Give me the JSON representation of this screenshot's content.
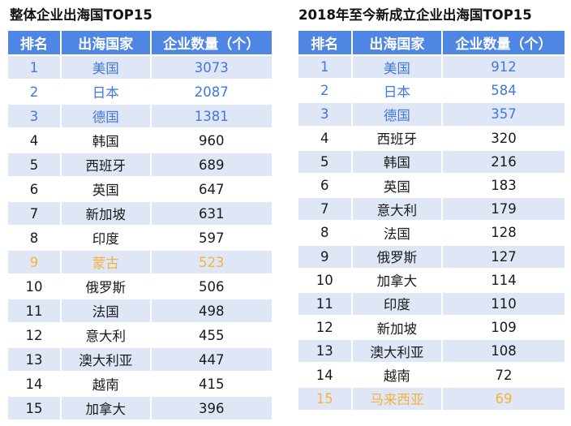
{
  "colors": {
    "header_bg": "#4f86e4",
    "stripe_bg": "#dfe7f7",
    "highlight_blue": "#3f78e0",
    "highlight_orange": "#f5b23c"
  },
  "left": {
    "title": "整体企业出海国TOP15",
    "headers": [
      "排名",
      "出海国家",
      "企业数量（个）"
    ],
    "rows": [
      {
        "rank": "1",
        "country": "美国",
        "count": "3073",
        "highlight": "blue"
      },
      {
        "rank": "2",
        "country": "日本",
        "count": "2087",
        "highlight": "blue"
      },
      {
        "rank": "3",
        "country": "德国",
        "count": "1381",
        "highlight": "blue"
      },
      {
        "rank": "4",
        "country": "韩国",
        "count": "960",
        "highlight": ""
      },
      {
        "rank": "5",
        "country": "西班牙",
        "count": "689",
        "highlight": ""
      },
      {
        "rank": "6",
        "country": "英国",
        "count": "647",
        "highlight": ""
      },
      {
        "rank": "7",
        "country": "新加坡",
        "count": "631",
        "highlight": ""
      },
      {
        "rank": "8",
        "country": "印度",
        "count": "597",
        "highlight": ""
      },
      {
        "rank": "9",
        "country": "蒙古",
        "count": "523",
        "highlight": "orange"
      },
      {
        "rank": "10",
        "country": "俄罗斯",
        "count": "506",
        "highlight": ""
      },
      {
        "rank": "11",
        "country": "法国",
        "count": "498",
        "highlight": ""
      },
      {
        "rank": "12",
        "country": "意大利",
        "count": "455",
        "highlight": ""
      },
      {
        "rank": "13",
        "country": "澳大利亚",
        "count": "447",
        "highlight": ""
      },
      {
        "rank": "14",
        "country": "越南",
        "count": "415",
        "highlight": ""
      },
      {
        "rank": "15",
        "country": "加拿大",
        "count": "396",
        "highlight": ""
      }
    ]
  },
  "right": {
    "title": "2018年至今新成立企业出海国TOP15",
    "headers": [
      "排名",
      "出海国家",
      "企业数量（个）"
    ],
    "rows": [
      {
        "rank": "1",
        "country": "美国",
        "count": "912",
        "highlight": "blue"
      },
      {
        "rank": "2",
        "country": "日本",
        "count": "584",
        "highlight": "blue"
      },
      {
        "rank": "3",
        "country": "德国",
        "count": "357",
        "highlight": "blue"
      },
      {
        "rank": "4",
        "country": "西班牙",
        "count": "320",
        "highlight": ""
      },
      {
        "rank": "5",
        "country": "韩国",
        "count": "216",
        "highlight": ""
      },
      {
        "rank": "6",
        "country": "英国",
        "count": "183",
        "highlight": ""
      },
      {
        "rank": "7",
        "country": "意大利",
        "count": "179",
        "highlight": ""
      },
      {
        "rank": "8",
        "country": "法国",
        "count": "128",
        "highlight": ""
      },
      {
        "rank": "9",
        "country": "俄罗斯",
        "count": "127",
        "highlight": ""
      },
      {
        "rank": "10",
        "country": "加拿大",
        "count": "114",
        "highlight": ""
      },
      {
        "rank": "11",
        "country": "印度",
        "count": "110",
        "highlight": ""
      },
      {
        "rank": "12",
        "country": "新加坡",
        "count": "109",
        "highlight": ""
      },
      {
        "rank": "13",
        "country": "澳大利亚",
        "count": "108",
        "highlight": ""
      },
      {
        "rank": "14",
        "country": "越南",
        "count": "72",
        "highlight": ""
      },
      {
        "rank": "15",
        "country": "马来西亚",
        "count": "69",
        "highlight": "orange"
      }
    ]
  }
}
